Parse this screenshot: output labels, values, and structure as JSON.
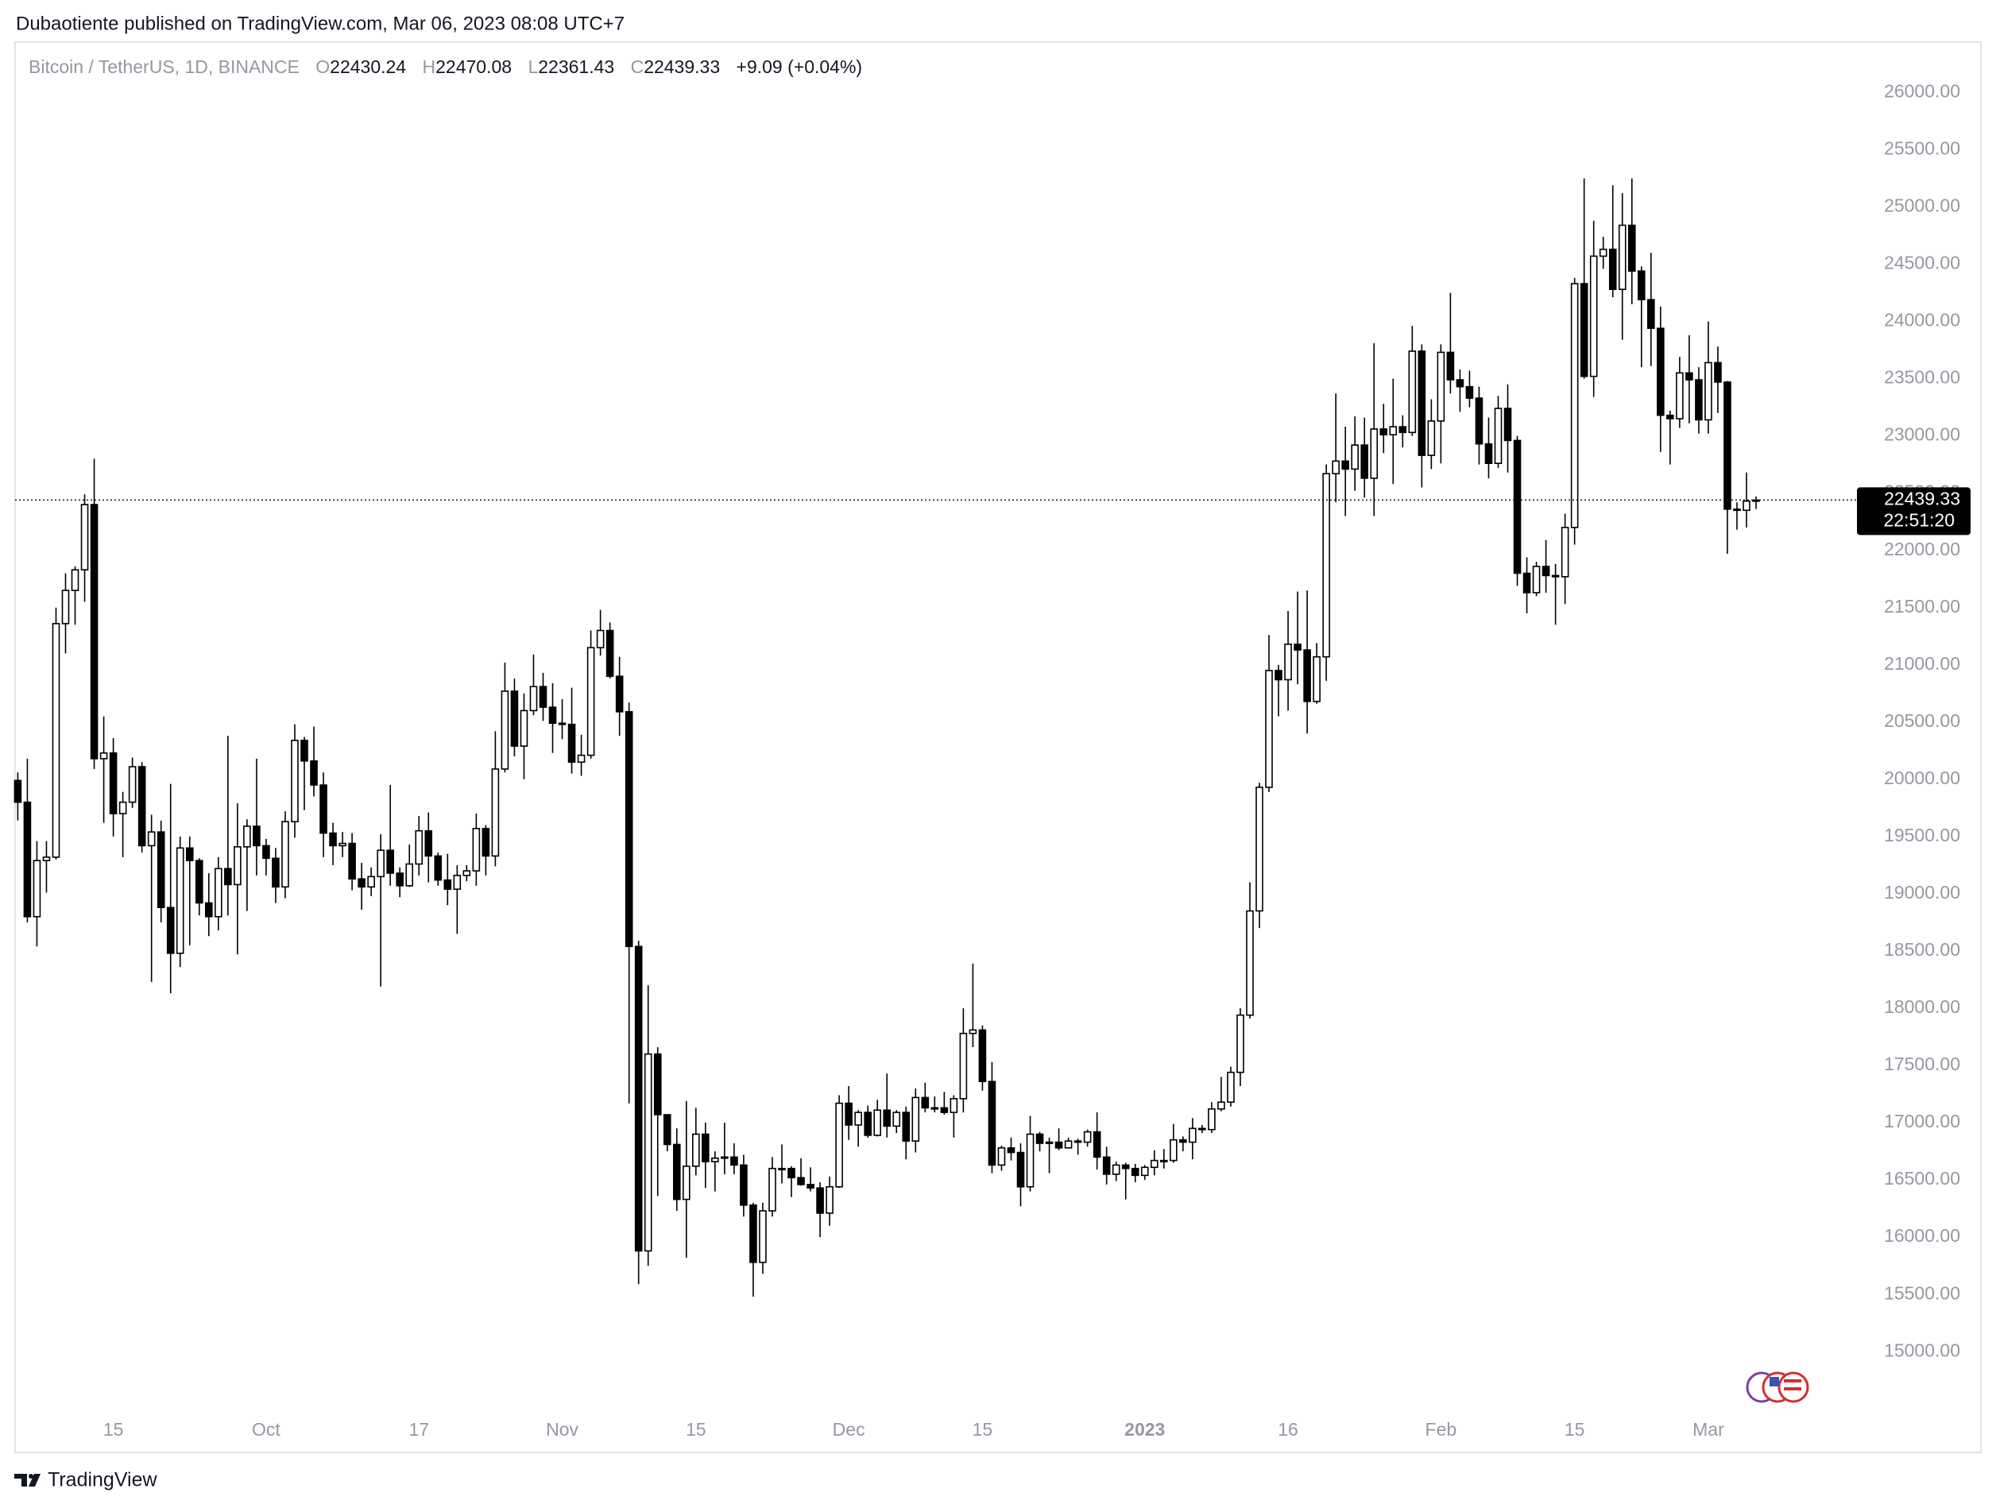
{
  "header": {
    "publisher": "Dubaotiente published on TradingView.com, Mar 06, 2023 08:08 UTC+7"
  },
  "legend": {
    "symbol": "Bitcoin / TetherUS, 1D, BINANCE",
    "open_letter": "O",
    "high_letter": "H",
    "low_letter": "L",
    "close_letter": "C",
    "change": "+9.09 (+0.04%)"
  },
  "countdown": "22:51:20",
  "footer": {
    "brand": "TradingView"
  },
  "chart_data": {
    "type": "candlestick",
    "categories": [
      null,
      null,
      null,
      null,
      null,
      null,
      null,
      null,
      null,
      null,
      "15",
      null,
      null,
      null,
      null,
      null,
      null,
      null,
      null,
      null,
      null,
      null,
      null,
      null,
      null,
      null,
      "Oct",
      null,
      null,
      null,
      null,
      null,
      null,
      null,
      null,
      null,
      null,
      null,
      null,
      null,
      null,
      null,
      "17",
      null,
      null,
      null,
      null,
      null,
      null,
      null,
      null,
      null,
      null,
      null,
      null,
      null,
      null,
      "Nov",
      null,
      null,
      null,
      null,
      null,
      null,
      null,
      null,
      null,
      null,
      null,
      null,
      null,
      "15",
      null,
      null,
      null,
      null,
      null,
      null,
      null,
      null,
      null,
      null,
      null,
      null,
      null,
      null,
      null,
      "Dec",
      null,
      null,
      null,
      null,
      null,
      null,
      null,
      null,
      null,
      null,
      null,
      null,
      null,
      "15",
      null,
      null,
      null,
      null,
      null,
      null,
      null,
      null,
      null,
      null,
      null,
      null,
      null,
      null,
      null,
      null,
      "2023",
      null,
      null,
      null,
      null,
      null,
      null,
      null,
      null,
      null,
      null,
      null,
      null,
      null,
      null,
      "16",
      null,
      null,
      null,
      null,
      null,
      null,
      null,
      null,
      null,
      null,
      null,
      null,
      null,
      null,
      null,
      "Feb",
      null,
      null,
      null,
      null,
      null,
      null,
      null,
      null,
      null,
      null,
      null,
      null,
      null,
      "15",
      null,
      null,
      null,
      null,
      null,
      null,
      null,
      null,
      null,
      null,
      null,
      null,
      null,
      "Mar",
      null,
      null,
      null,
      null,
      null
    ],
    "open": [
      19990,
      19800,
      18800,
      19290,
      19320,
      21360,
      21650,
      21830,
      22400,
      20180,
      20230,
      19700,
      19800,
      20110,
      19420,
      19540,
      18880,
      18480,
      19400,
      19290,
      18920,
      18800,
      19220,
      19080,
      19410,
      19590,
      19420,
      19310,
      19060,
      19630,
      20340,
      20160,
      19950,
      19530,
      19420,
      19440,
      19130,
      19060,
      19150,
      19380,
      19180,
      19070,
      19260,
      19550,
      19330,
      19120,
      19040,
      19160,
      19200,
      19570,
      19330,
      20090,
      20770,
      20290,
      20600,
      20810,
      20630,
      20490,
      20480,
      20150,
      20210,
      21150,
      21300,
      20900,
      20590,
      18540,
      15880,
      17600,
      17070,
      16810,
      16330,
      16620,
      16900,
      16660,
      16690,
      16700,
      16630,
      16280,
      15780,
      16230,
      16600,
      16600,
      16520,
      16460,
      16430,
      16210,
      16440,
      17170,
      16980,
      17090,
      16890,
      17110,
      16970,
      17090,
      16840,
      17220,
      17130,
      17130,
      17090,
      17210,
      17780,
      17810,
      17360,
      16630,
      16780,
      16740,
      16440,
      16900,
      16820,
      16830,
      16780,
      16840,
      16830,
      16920,
      16700,
      16550,
      16630,
      16600,
      16540,
      16610,
      16670,
      16670,
      16850,
      16830,
      16950,
      16940,
      17120,
      17180,
      17440,
      17940,
      18850,
      19930,
      20950,
      20870,
      21180,
      21130,
      20680,
      21070,
      22670,
      22780,
      22710,
      22920,
      22630,
      23060,
      23010,
      23080,
      23030,
      23740,
      22830,
      23130,
      23730,
      23490,
      23430,
      23330,
      22930,
      22760,
      23240,
      22960,
      21800,
      21630,
      21860,
      21780,
      21770,
      22200,
      24330,
      23520,
      24570,
      24630,
      24280,
      24840,
      24440,
      24190,
      23940,
      23180,
      23150,
      23550,
      23490,
      23140,
      23640,
      23470,
      22360,
      22350,
      22430.24
    ],
    "high": [
      20060,
      20180,
      19460,
      19460,
      21500,
      21800,
      21860,
      22490,
      22800,
      20550,
      20360,
      19890,
      20190,
      20150,
      19690,
      19640,
      19960,
      19500,
      19500,
      19310,
      19180,
      19320,
      20380,
      19790,
      19650,
      20180,
      19480,
      19400,
      19720,
      20480,
      20370,
      20460,
      20060,
      19620,
      19540,
      19530,
      19270,
      19230,
      19520,
      19950,
      19230,
      19430,
      19680,
      19710,
      19360,
      19350,
      19250,
      19250,
      19700,
      19600,
      20420,
      21020,
      20880,
      20750,
      21090,
      20930,
      20840,
      20700,
      20800,
      20390,
      21300,
      21480,
      21370,
      21070,
      20670,
      18590,
      18200,
      17660,
      17070,
      16950,
      17190,
      17130,
      17000,
      16750,
      17000,
      16820,
      16720,
      16300,
      16300,
      16700,
      16810,
      16620,
      16690,
      16610,
      16480,
      16530,
      17240,
      17320,
      17110,
      17150,
      17200,
      17430,
      17110,
      17140,
      17300,
      17350,
      17230,
      17270,
      17240,
      18000,
      18390,
      17850,
      17530,
      16800,
      16870,
      16820,
      17060,
      16920,
      16870,
      16950,
      16870,
      16860,
      16940,
      17090,
      16790,
      16660,
      16650,
      16640,
      16630,
      16760,
      16770,
      16990,
      16880,
      17040,
      16980,
      17180,
      17400,
      17490,
      18000,
      19100,
      19970,
      21260,
      21000,
      21470,
      21640,
      21650,
      21190,
      22750,
      23370,
      23080,
      23170,
      23160,
      23810,
      23280,
      23500,
      23180,
      23960,
      23800,
      23320,
      23800,
      24250,
      23580,
      23570,
      23430,
      23160,
      23350,
      23450,
      23000,
      21940,
      21900,
      22090,
      21880,
      22320,
      24380,
      25250,
      24880,
      24740,
      25190,
      25120,
      25250,
      24480,
      24600,
      24130,
      23220,
      23690,
      23880,
      23600,
      24000,
      23780,
      23480,
      22420,
      22680,
      22470.08
    ],
    "low": [
      19640,
      18750,
      18540,
      19010,
      19300,
      21100,
      21350,
      21550,
      20090,
      19620,
      19500,
      19320,
      19750,
      19360,
      18230,
      18750,
      18130,
      18360,
      18550,
      18810,
      18630,
      18680,
      18810,
      18470,
      18850,
      19160,
      19160,
      18920,
      18960,
      19490,
      19730,
      19850,
      19320,
      19250,
      19320,
      19030,
      18860,
      18980,
      18190,
      19070,
      18970,
      19060,
      19160,
      19100,
      19070,
      18900,
      18650,
      19110,
      19070,
      19160,
      19240,
      20060,
      20200,
      20000,
      20560,
      20510,
      20230,
      20350,
      20050,
      20030,
      20180,
      21080,
      20880,
      20380,
      17170,
      15590,
      15750,
      16360,
      16750,
      16230,
      15820,
      16540,
      16430,
      16400,
      16550,
      16550,
      16180,
      15480,
      15680,
      16180,
      16470,
      16350,
      16450,
      16400,
      16000,
      16100,
      16430,
      16850,
      16790,
      16870,
      16880,
      16870,
      16910,
      16680,
      16740,
      17090,
      17090,
      17070,
      16870,
      17090,
      17660,
      17280,
      16560,
      16580,
      16670,
      16270,
      16400,
      16750,
      16560,
      16760,
      16780,
      16720,
      16790,
      16590,
      16460,
      16490,
      16330,
      16480,
      16500,
      16540,
      16600,
      16650,
      16750,
      16680,
      16910,
      16910,
      17100,
      17140,
      17320,
      17910,
      18700,
      19890,
      20550,
      20600,
      20830,
      20400,
      20660,
      20860,
      22420,
      22300,
      22520,
      22460,
      22300,
      22850,
      22580,
      22900,
      23000,
      22550,
      22710,
      22760,
      23370,
      23210,
      23250,
      22750,
      22630,
      22720,
      22680,
      21690,
      21450,
      21600,
      21630,
      21350,
      21530,
      22050,
      23500,
      23340,
      24460,
      24210,
      23840,
      24150,
      23600,
      23610,
      22860,
      22750,
      23070,
      23110,
      23020,
      23020,
      23200,
      21970,
      22180,
      22200,
      22361.43
    ],
    "close": [
      19800,
      18800,
      19290,
      19320,
      21360,
      21650,
      21830,
      22400,
      20180,
      20230,
      19700,
      19800,
      20110,
      19420,
      19540,
      18880,
      18480,
      19400,
      19290,
      18920,
      18800,
      19220,
      19080,
      19410,
      19590,
      19420,
      19310,
      19060,
      19630,
      20340,
      20160,
      19950,
      19530,
      19420,
      19440,
      19130,
      19060,
      19150,
      19380,
      19180,
      19070,
      19260,
      19550,
      19330,
      19120,
      19040,
      19160,
      19200,
      19570,
      19330,
      20090,
      20770,
      20290,
      20600,
      20810,
      20630,
      20490,
      20480,
      20150,
      20210,
      21150,
      21300,
      20900,
      20590,
      18540,
      15880,
      17600,
      17070,
      16810,
      16330,
      16620,
      16900,
      16660,
      16690,
      16700,
      16630,
      16280,
      15780,
      16230,
      16600,
      16600,
      16520,
      16460,
      16430,
      16210,
      16440,
      17170,
      16980,
      17090,
      16890,
      17110,
      16970,
      17090,
      16840,
      17220,
      17130,
      17130,
      17090,
      17210,
      17780,
      17810,
      17360,
      16630,
      16780,
      16740,
      16440,
      16900,
      16820,
      16830,
      16780,
      16840,
      16830,
      16920,
      16700,
      16550,
      16630,
      16600,
      16540,
      16610,
      16670,
      16670,
      16850,
      16830,
      16950,
      16940,
      17120,
      17180,
      17440,
      17940,
      18850,
      19930,
      20950,
      20870,
      21180,
      21130,
      20680,
      21070,
      22670,
      22780,
      22710,
      22920,
      22630,
      23060,
      23010,
      23080,
      23030,
      23740,
      22830,
      23130,
      23730,
      23490,
      23430,
      23330,
      22930,
      22760,
      23240,
      22960,
      21800,
      21630,
      21860,
      21780,
      21770,
      22200,
      24330,
      23520,
      24570,
      24630,
      24280,
      24840,
      24440,
      24190,
      23940,
      23180,
      23150,
      23550,
      23490,
      23140,
      23640,
      23470,
      22360,
      22350,
      22430.24,
      22439.33
    ],
    "up_color": "#ffffff",
    "down_color": "#000000",
    "wick_color": "#000000",
    "ylim": [
      14120,
      26440
    ],
    "yticks": [
      {
        "value": 15000,
        "label": "15000.00"
      },
      {
        "value": 15500,
        "label": "15500.00"
      },
      {
        "value": 16000,
        "label": "16000.00"
      },
      {
        "value": 16500,
        "label": "16500.00"
      },
      {
        "value": 17000,
        "label": "17000.00"
      },
      {
        "value": 17500,
        "label": "17500.00"
      },
      {
        "value": 18000,
        "label": "18000.00"
      },
      {
        "value": 18500,
        "label": "18500.00"
      },
      {
        "value": 19000,
        "label": "19000.00"
      },
      {
        "value": 19500,
        "label": "19500.00"
      },
      {
        "value": 20000,
        "label": "20000.00"
      },
      {
        "value": 20500,
        "label": "20500.00"
      },
      {
        "value": 21000,
        "label": "21000.00"
      },
      {
        "value": 21500,
        "label": "21500.00"
      },
      {
        "value": 22000,
        "label": "22000.00"
      },
      {
        "value": 22500,
        "label": "22500.00"
      },
      {
        "value": 23000,
        "label": "23000.00"
      },
      {
        "value": 23500,
        "label": "23500.00"
      },
      {
        "value": 24000,
        "label": "24000.00"
      },
      {
        "value": 24500,
        "label": "24500.00"
      },
      {
        "value": 25000,
        "label": "25000.00"
      },
      {
        "value": 25500,
        "label": "25500.00"
      },
      {
        "value": 26000,
        "label": "26000.00"
      }
    ],
    "grid": false
  }
}
